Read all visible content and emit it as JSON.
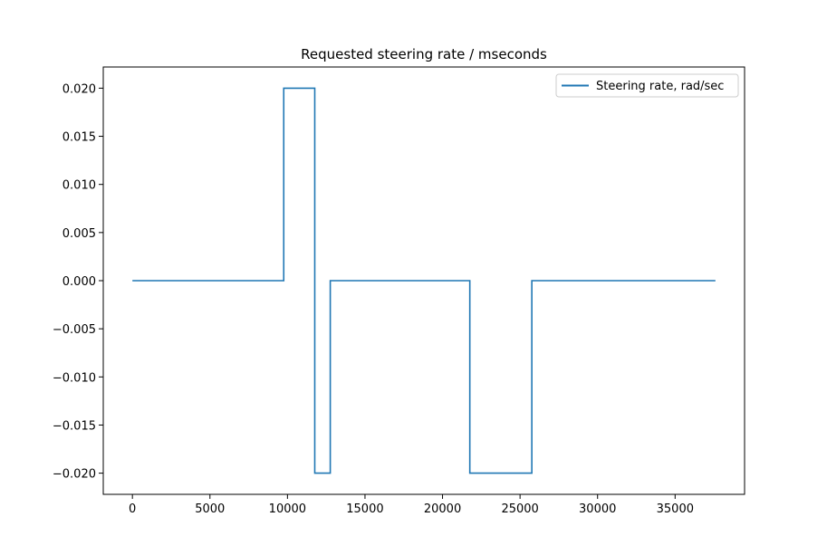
{
  "chart_data": {
    "type": "line",
    "title": "Requested steering rate / mseconds",
    "xlabel": "",
    "ylabel": "",
    "xlim": [
      -1880,
      39480
    ],
    "ylim": [
      -0.0222,
      0.0222
    ],
    "x_ticks": [
      0,
      5000,
      10000,
      15000,
      20000,
      25000,
      30000,
      35000
    ],
    "y_ticks": [
      0.02,
      0.015,
      0.01,
      0.005,
      0.0,
      -0.005,
      -0.01,
      -0.015,
      -0.02
    ],
    "x_tick_labels": [
      "0",
      "5000",
      "10000",
      "15000",
      "20000",
      "25000",
      "30000",
      "35000"
    ],
    "y_tick_labels": [
      "0.020",
      "0.015",
      "0.010",
      "0.005",
      "0.000",
      "−0.005",
      "−0.010",
      "−0.015",
      "−0.020"
    ],
    "grid": false,
    "legend_position": "top-right",
    "series": [
      {
        "name": "Steering rate, rad/sec",
        "color": "#1f77b4",
        "x": [
          0,
          9760,
          9760,
          11760,
          11760,
          12760,
          12760,
          21760,
          21760,
          25760,
          25760,
          37600
        ],
        "y": [
          0.0,
          0.0,
          0.02,
          0.02,
          -0.02,
          -0.02,
          0.0,
          0.0,
          -0.02,
          -0.02,
          0.0,
          0.0
        ]
      }
    ]
  }
}
